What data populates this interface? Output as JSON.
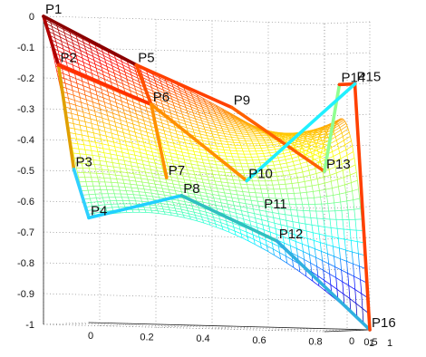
{
  "chart_data": {
    "type": "surface",
    "title": "",
    "xlabel": "",
    "ylabel": "",
    "zlabel": "",
    "x_ticks": [
      "0",
      "0.2",
      "0.4",
      "0.6",
      "0.8",
      "1"
    ],
    "y_ticks": [
      "1",
      "0.5",
      "0"
    ],
    "z_ticks": [
      "0",
      "-0.1",
      "-0.2",
      "-0.3",
      "-0.4",
      "-0.5",
      "-0.6",
      "-0.7",
      "-0.8",
      "-0.9",
      "-1"
    ],
    "xlim": [
      0,
      1
    ],
    "ylim": [
      0,
      1
    ],
    "zlim": [
      -1,
      0
    ],
    "grid": true,
    "colormap": "jet",
    "colormap_stops": [
      "#000080",
      "#0000ff",
      "#00ffff",
      "#80ff80",
      "#ffff00",
      "#ff8000",
      "#ff0000",
      "#800000"
    ],
    "control_points": [
      {
        "label": "P1",
        "x": 0.0,
        "y": 0.0,
        "z": 0.0
      },
      {
        "label": "P2",
        "x": 0.0,
        "y": 0.33,
        "z": -0.16
      },
      {
        "label": "P3",
        "x": 0.0,
        "y": 0.67,
        "z": -0.5
      },
      {
        "label": "P4",
        "x": 0.0,
        "y": 1.0,
        "z": -0.66
      },
      {
        "label": "P5",
        "x": 0.33,
        "y": 0.0,
        "z": -0.15
      },
      {
        "label": "P6",
        "x": 0.33,
        "y": 0.33,
        "z": -0.28
      },
      {
        "label": "P7",
        "x": 0.33,
        "y": 0.67,
        "z": -0.52
      },
      {
        "label": "P8",
        "x": 0.33,
        "y": 1.0,
        "z": -0.58
      },
      {
        "label": "P9",
        "x": 0.67,
        "y": 0.0,
        "z": -0.28
      },
      {
        "label": "P10",
        "x": 0.67,
        "y": 0.33,
        "z": -0.52
      },
      {
        "label": "P11",
        "x": 0.67,
        "y": 0.67,
        "z": -0.62
      },
      {
        "label": "P12",
        "x": 0.67,
        "y": 1.0,
        "z": -0.72
      },
      {
        "label": "P13",
        "x": 1.0,
        "y": 0.0,
        "z": -0.48
      },
      {
        "label": "P14",
        "x": 1.0,
        "y": 0.33,
        "z": -0.2
      },
      {
        "label": "P15",
        "x": 1.0,
        "y": 0.67,
        "z": -0.2
      },
      {
        "label": "P16",
        "x": 1.0,
        "y": 1.0,
        "z": -1.0
      }
    ],
    "control_net": [
      {
        "from": "P1",
        "to": "P2",
        "color": "#b00000"
      },
      {
        "from": "P2",
        "to": "P3",
        "color": "#e0a000"
      },
      {
        "from": "P3",
        "to": "P4",
        "color": "#30d0ff"
      },
      {
        "from": "P1",
        "to": "P5",
        "color": "#8b0000"
      },
      {
        "from": "P5",
        "to": "P9",
        "color": "#ff4000"
      },
      {
        "from": "P9",
        "to": "P13",
        "color": "#ff6000"
      },
      {
        "from": "P2",
        "to": "P6",
        "color": "#ff3000"
      },
      {
        "from": "P6",
        "to": "P10",
        "color": "#ff9000"
      },
      {
        "from": "P4",
        "to": "P8",
        "color": "#20d0ff"
      },
      {
        "from": "P8",
        "to": "P12",
        "color": "#30c0c0"
      },
      {
        "from": "P12",
        "to": "P16",
        "color": "#30b0e0"
      },
      {
        "from": "P13",
        "to": "P14",
        "color": "#90ff90"
      },
      {
        "from": "P14",
        "to": "P15",
        "color": "#ff4000"
      },
      {
        "from": "P15",
        "to": "P16",
        "color": "#ff4000"
      },
      {
        "from": "P10",
        "to": "P15",
        "color": "#20f0ff"
      },
      {
        "from": "P5",
        "to": "P6",
        "color": "#ff5000"
      },
      {
        "from": "P6",
        "to": "P7",
        "color": "#ff9000"
      }
    ]
  }
}
